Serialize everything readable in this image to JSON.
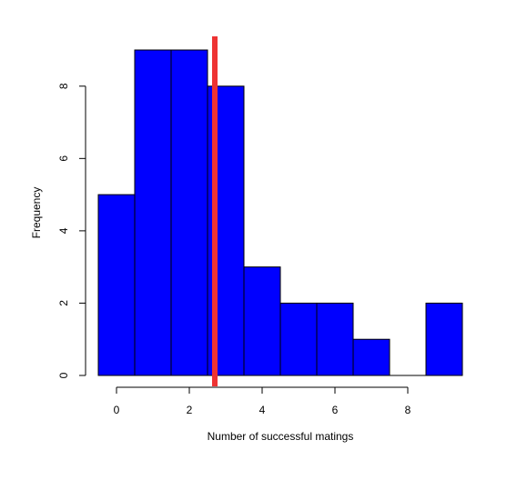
{
  "chart_data": {
    "type": "bar",
    "title": "",
    "xlabel": "Number of successful matings",
    "ylabel": "Frequency",
    "bins": [
      {
        "x0": -0.5,
        "x1": 0.5,
        "count": 5
      },
      {
        "x0": 0.5,
        "x1": 1.5,
        "count": 9
      },
      {
        "x0": 1.5,
        "x1": 2.5,
        "count": 9
      },
      {
        "x0": 2.5,
        "x1": 3.5,
        "count": 8
      },
      {
        "x0": 3.5,
        "x1": 4.5,
        "count": 3
      },
      {
        "x0": 4.5,
        "x1": 5.5,
        "count": 2
      },
      {
        "x0": 5.5,
        "x1": 6.5,
        "count": 2
      },
      {
        "x0": 6.5,
        "x1": 7.5,
        "count": 1
      },
      {
        "x0": 7.5,
        "x1": 8.5,
        "count": 0
      },
      {
        "x0": 8.5,
        "x1": 9.5,
        "count": 2
      }
    ],
    "bar_color": "#0000ff",
    "vline": {
      "x": 2.7,
      "color": "#ee3333"
    },
    "xlim": [
      -0.5,
      9.5
    ],
    "ylim": [
      0,
      9
    ],
    "x_ticks": [
      0,
      2,
      4,
      6,
      8
    ],
    "y_ticks": [
      0,
      2,
      4,
      6,
      8
    ],
    "grid": false,
    "legend": "none"
  }
}
